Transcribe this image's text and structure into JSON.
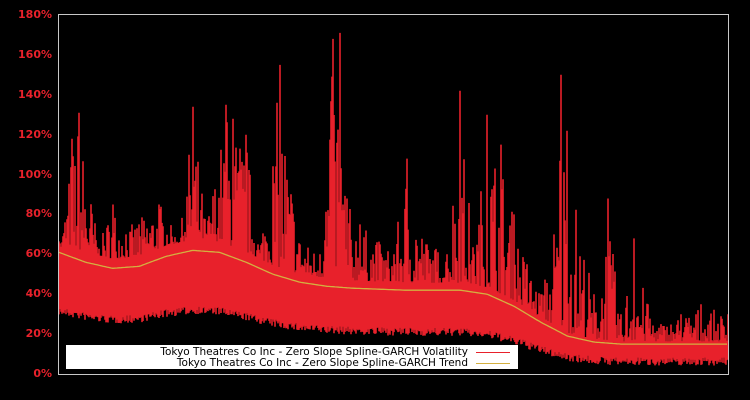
{
  "chart_data": {
    "type": "line",
    "title": "",
    "xlabel": "",
    "ylabel": "",
    "ylim": [
      0,
      180
    ],
    "yticks": [
      "0%",
      "20%",
      "40%",
      "60%",
      "80%",
      "100%",
      "120%",
      "140%",
      "160%",
      "180%"
    ],
    "grid": false,
    "legend_position": "lower-left",
    "series": [
      {
        "name": "Tokyo Theatres Co Inc - Zero Slope Spline-GARCH Volatility",
        "color": "#e8212b",
        "x_frac": [
          0.0,
          0.02,
          0.03,
          0.06,
          0.08,
          0.1,
          0.12,
          0.15,
          0.18,
          0.2,
          0.22,
          0.25,
          0.26,
          0.28,
          0.3,
          0.33,
          0.36,
          0.39,
          0.41,
          0.42,
          0.43,
          0.45,
          0.48,
          0.5,
          0.52,
          0.55,
          0.58,
          0.6,
          0.62,
          0.64,
          0.66,
          0.68,
          0.7,
          0.72,
          0.74,
          0.75,
          0.76,
          0.8,
          0.82,
          0.84,
          0.86,
          0.88,
          0.9,
          0.93,
          0.96,
          1.0
        ],
        "values": [
          45,
          118,
          131,
          60,
          85,
          70,
          75,
          85,
          60,
          134,
          70,
          135,
          128,
          120,
          60,
          155,
          65,
          60,
          168,
          171,
          88,
          75,
          65,
          60,
          108,
          65,
          60,
          142,
          60,
          130,
          115,
          80,
          55,
          40,
          70,
          150,
          122,
          40,
          88,
          30,
          68,
          35,
          25,
          30,
          35,
          30
        ]
      },
      {
        "name": "Tokyo Theatres Co Inc - Zero Slope Spline-GARCH Trend",
        "color": "#d4b040",
        "x_frac": [
          0.0,
          0.04,
          0.08,
          0.12,
          0.16,
          0.2,
          0.24,
          0.28,
          0.32,
          0.36,
          0.4,
          0.44,
          0.48,
          0.52,
          0.56,
          0.6,
          0.64,
          0.68,
          0.72,
          0.76,
          0.8,
          0.84,
          0.88,
          0.92,
          0.96,
          1.0
        ],
        "values": [
          61,
          56,
          53,
          54,
          59,
          62,
          61,
          56,
          50,
          46,
          44,
          43,
          42.5,
          42,
          42,
          42,
          40,
          34,
          26,
          19,
          16,
          15,
          15,
          15,
          15,
          15
        ]
      }
    ]
  },
  "axis": {
    "ticks": [
      "0%",
      "20%",
      "40%",
      "60%",
      "80%",
      "100%",
      "120%",
      "140%",
      "160%",
      "180%"
    ]
  },
  "legend": {
    "volatility_label": "Tokyo Theatres Co Inc - Zero Slope Spline-GARCH Volatility",
    "trend_label": "Tokyo Theatres Co Inc - Zero Slope Spline-GARCH Trend",
    "volatility_color": "#e8212b",
    "trend_color": "#d4b040"
  }
}
